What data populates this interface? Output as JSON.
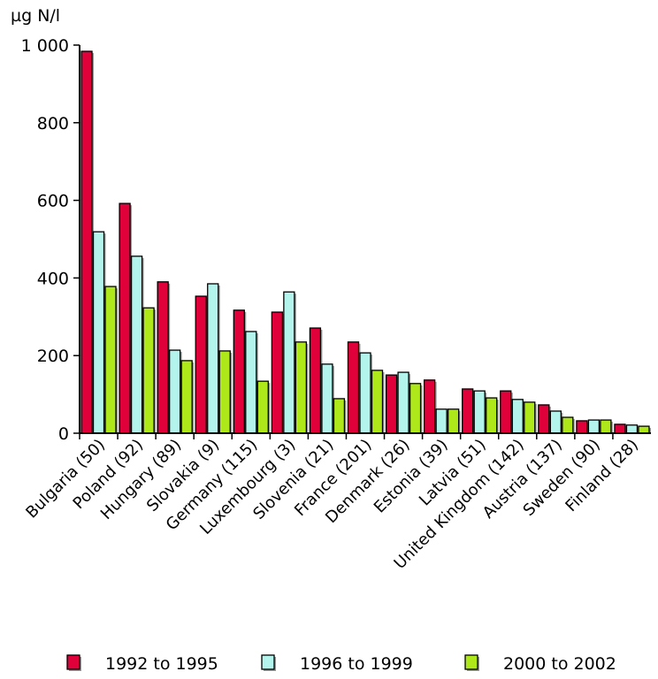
{
  "chart_data": {
    "type": "bar",
    "ylabel": "µg N/l",
    "ylim": [
      0,
      1000
    ],
    "yticks": [
      0,
      200,
      400,
      600,
      800,
      1000
    ],
    "ytick_labels": [
      "0",
      "200",
      "400",
      "600",
      "800",
      "1 000"
    ],
    "categories": [
      "Bulgaria (50)",
      "Poland (92)",
      "Hungary (89)",
      "Slovakia (9)",
      "Germany (115)",
      "Luxembourg (3)",
      "Slovenia (21)",
      "France (201)",
      "Denmark (26)",
      "Estonia (39)",
      "Latvia (51)",
      "United Kingdom (142)",
      "Austria (137)",
      "Sweden (90)",
      "Finland (28)"
    ],
    "series": [
      {
        "name": "1992 to 1995",
        "color": "#e0003a",
        "values": [
          984,
          592,
          390,
          353,
          317,
          312,
          271,
          235,
          150,
          137,
          114,
          109,
          73,
          32,
          23
        ]
      },
      {
        "name": "1996 to 1999",
        "color": "#b3f5ec",
        "values": [
          519,
          456,
          214,
          385,
          262,
          364,
          178,
          207,
          157,
          62,
          109,
          87,
          57,
          34,
          21
        ]
      },
      {
        "name": "2000 to 2002",
        "color": "#aee81a",
        "values": [
          378,
          323,
          187,
          212,
          134,
          235,
          89,
          162,
          128,
          62,
          91,
          80,
          41,
          34,
          18
        ]
      }
    ],
    "legend": "bottom",
    "grid": false
  }
}
